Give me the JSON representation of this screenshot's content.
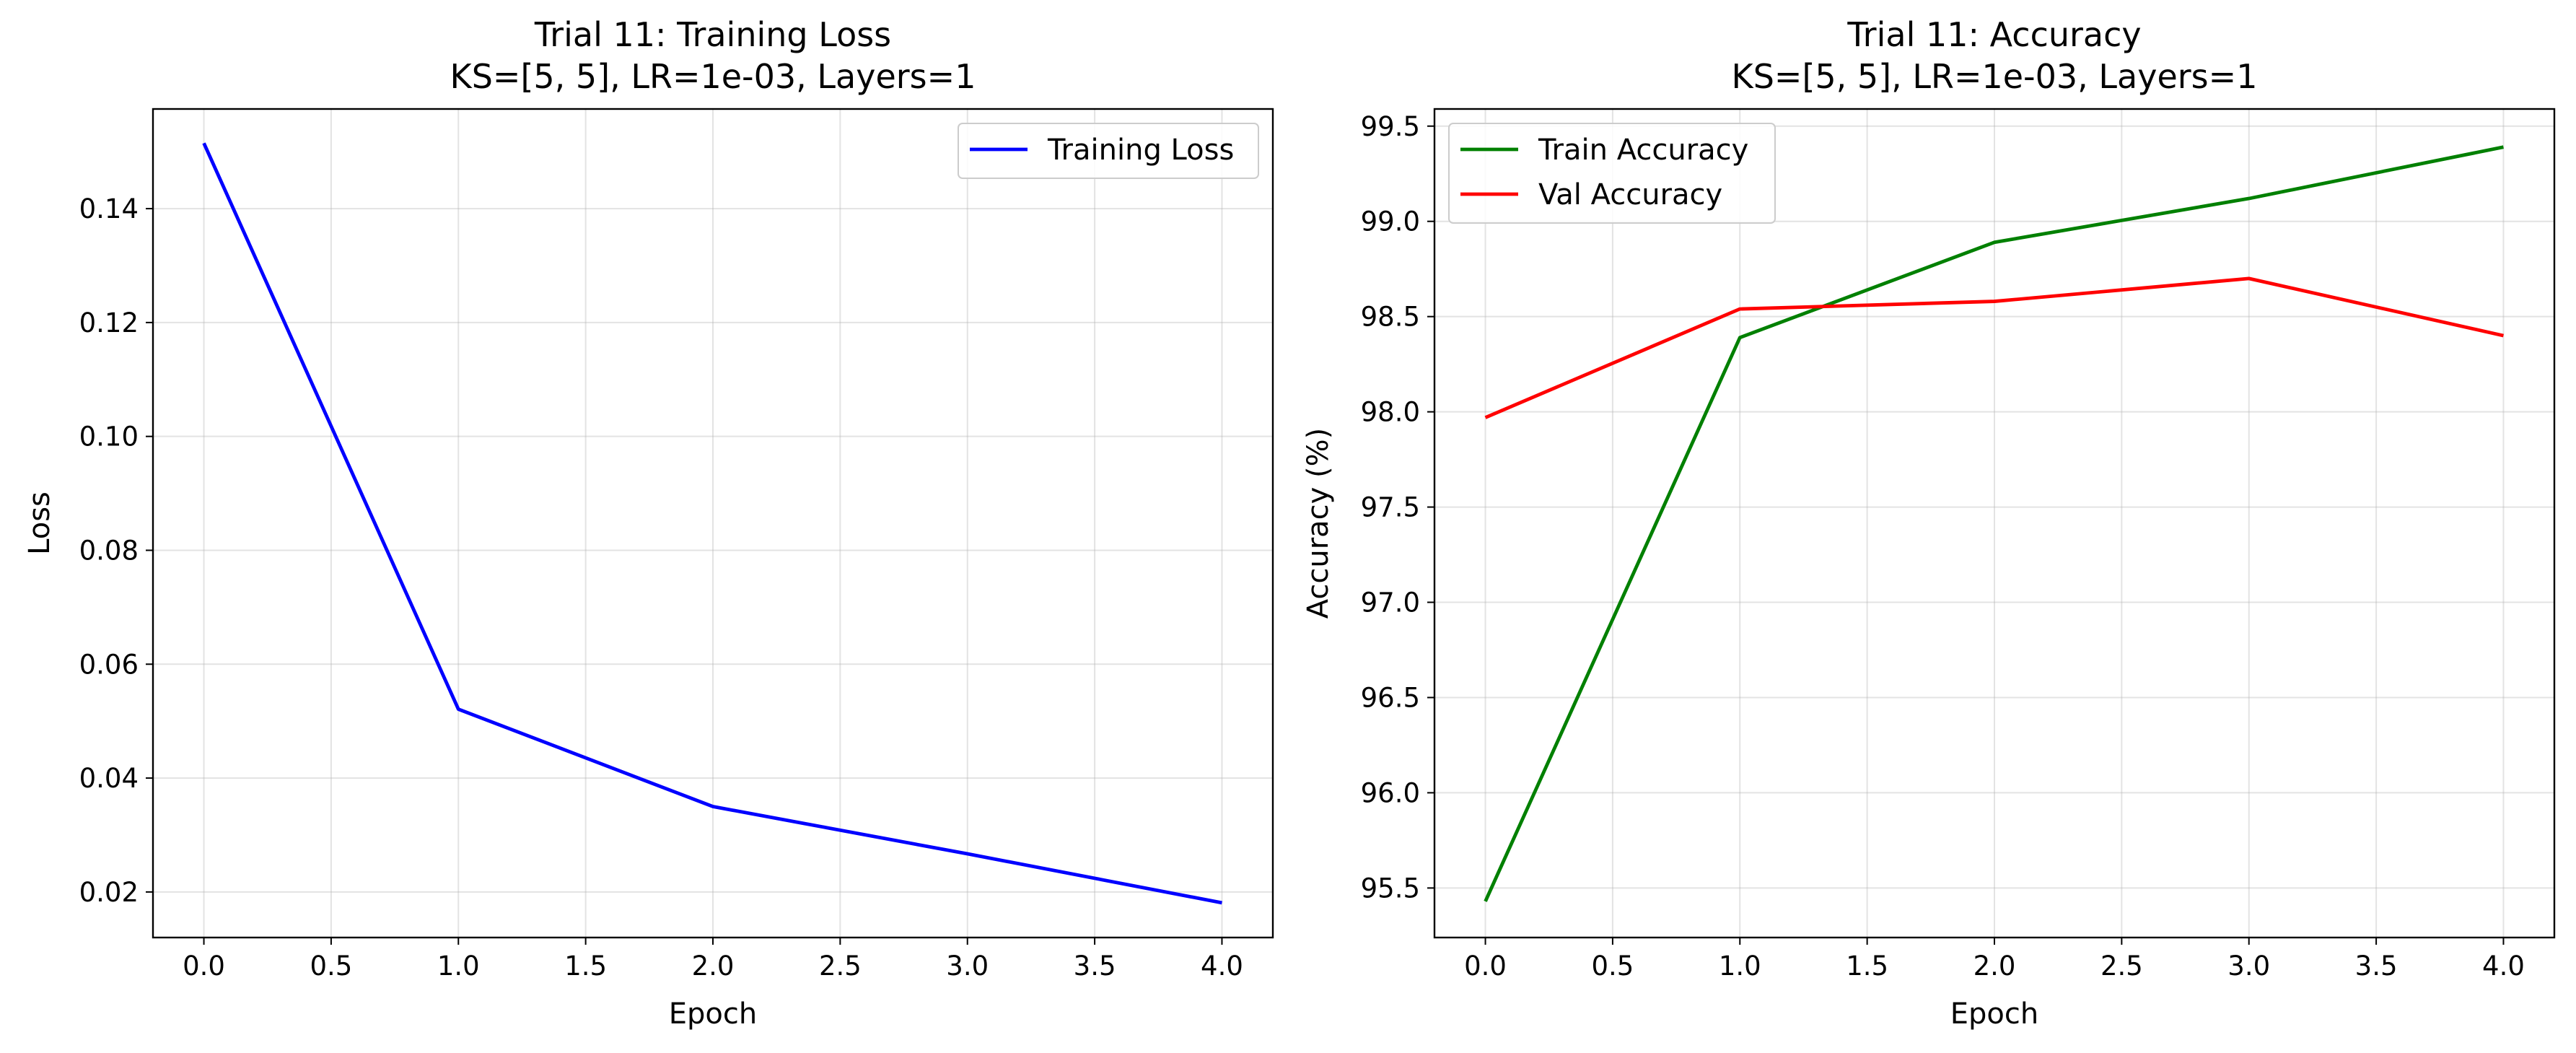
{
  "chart_data": [
    {
      "type": "line",
      "title_line1": "Trial 11: Training Loss",
      "title_line2": "KS=[5, 5], LR=1e-03, Layers=1",
      "xlabel": "Epoch",
      "ylabel": "Loss",
      "xlim": [
        -0.2,
        4.2
      ],
      "ylim": [
        0.012,
        0.1575
      ],
      "xticks": [
        0.0,
        0.5,
        1.0,
        1.5,
        2.0,
        2.5,
        3.0,
        3.5,
        4.0
      ],
      "xtick_labels": [
        "0.0",
        "0.5",
        "1.0",
        "1.5",
        "2.0",
        "2.5",
        "3.0",
        "3.5",
        "4.0"
      ],
      "yticks": [
        0.02,
        0.04,
        0.06,
        0.08,
        0.1,
        0.12,
        0.14
      ],
      "ytick_labels": [
        "0.02",
        "0.04",
        "0.06",
        "0.08",
        "0.10",
        "0.12",
        "0.14"
      ],
      "grid": true,
      "legend_position": "upper right",
      "x": [
        0,
        1,
        2,
        3,
        4
      ],
      "series": [
        {
          "name": "Training Loss",
          "color": "#0000ff",
          "values": [
            0.1515,
            0.0521,
            0.035,
            0.0267,
            0.0181
          ]
        }
      ]
    },
    {
      "type": "line",
      "title_line1": "Trial 11: Accuracy",
      "title_line2": "KS=[5, 5], LR=1e-03, Layers=1",
      "xlabel": "Epoch",
      "ylabel": "Accuracy (%)",
      "xlim": [
        -0.2,
        4.2
      ],
      "ylim": [
        95.24,
        99.59
      ],
      "xticks": [
        0.0,
        0.5,
        1.0,
        1.5,
        2.0,
        2.5,
        3.0,
        3.5,
        4.0
      ],
      "xtick_labels": [
        "0.0",
        "0.5",
        "1.0",
        "1.5",
        "2.0",
        "2.5",
        "3.0",
        "3.5",
        "4.0"
      ],
      "yticks": [
        95.5,
        96.0,
        96.5,
        97.0,
        97.5,
        98.0,
        98.5,
        99.0,
        99.5
      ],
      "ytick_labels": [
        "95.5",
        "96.0",
        "96.5",
        "97.0",
        "97.5",
        "98.0",
        "98.5",
        "99.0",
        "99.5"
      ],
      "grid": true,
      "legend_position": "upper left",
      "x": [
        0,
        1,
        2,
        3,
        4
      ],
      "series": [
        {
          "name": "Train Accuracy",
          "color": "#008000",
          "values": [
            95.43,
            98.39,
            98.89,
            99.12,
            99.39
          ]
        },
        {
          "name": "Val Accuracy",
          "color": "#ff0000",
          "values": [
            97.97,
            98.54,
            98.58,
            98.7,
            98.4
          ]
        }
      ]
    }
  ]
}
